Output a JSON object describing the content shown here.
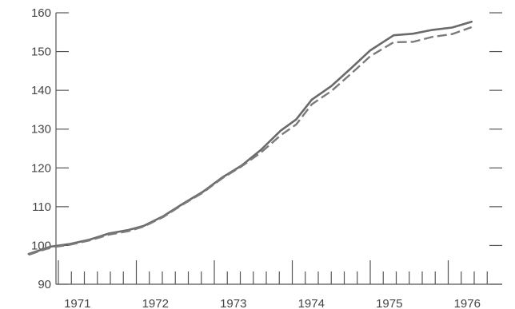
{
  "chart_data": {
    "type": "line",
    "title": "",
    "xlabel": "",
    "ylabel": "",
    "ylim": [
      90,
      160
    ],
    "yticks": [
      90,
      100,
      110,
      120,
      130,
      140,
      150,
      160
    ],
    "xlim": [
      1970.6,
      1976.6
    ],
    "x_tick_labels": [
      "1971",
      "1972",
      "1973",
      "1974",
      "1975",
      "1976"
    ],
    "grid": false,
    "legend": "none",
    "series": [
      {
        "style": "solid",
        "color": "#6a6a6a",
        "points": [
          [
            1970.62,
            97.8
          ],
          [
            1970.9,
            99.7
          ],
          [
            1971.15,
            100.4
          ],
          [
            1971.4,
            101.5
          ],
          [
            1971.65,
            103.1
          ],
          [
            1971.9,
            104.0
          ],
          [
            1972.1,
            105.1
          ],
          [
            1972.35,
            107.6
          ],
          [
            1972.6,
            110.8
          ],
          [
            1972.85,
            113.8
          ],
          [
            1973.1,
            117.5
          ],
          [
            1973.35,
            120.6
          ],
          [
            1973.6,
            124.7
          ],
          [
            1973.85,
            129.6
          ],
          [
            1974.05,
            132.5
          ],
          [
            1974.25,
            137.6
          ],
          [
            1974.5,
            141.1
          ],
          [
            1974.75,
            145.6
          ],
          [
            1975.0,
            150.3
          ],
          [
            1975.3,
            154.2
          ],
          [
            1975.55,
            154.6
          ],
          [
            1975.8,
            155.6
          ],
          [
            1976.05,
            156.2
          ],
          [
            1976.3,
            157.7
          ]
        ]
      },
      {
        "style": "dashed",
        "color": "#7a7a7a",
        "points": [
          [
            1970.62,
            97.6
          ],
          [
            1970.9,
            99.5
          ],
          [
            1971.15,
            100.2
          ],
          [
            1971.4,
            101.3
          ],
          [
            1971.65,
            102.8
          ],
          [
            1971.9,
            103.7
          ],
          [
            1972.1,
            104.9
          ],
          [
            1972.35,
            107.4
          ],
          [
            1972.6,
            110.6
          ],
          [
            1972.85,
            113.6
          ],
          [
            1973.1,
            117.3
          ],
          [
            1973.35,
            120.4
          ],
          [
            1973.6,
            124.0
          ],
          [
            1973.85,
            128.4
          ],
          [
            1974.05,
            131.2
          ],
          [
            1974.25,
            136.4
          ],
          [
            1974.5,
            139.8
          ],
          [
            1974.75,
            144.2
          ],
          [
            1975.0,
            148.8
          ],
          [
            1975.3,
            152.4
          ],
          [
            1975.55,
            152.5
          ],
          [
            1975.8,
            153.8
          ],
          [
            1976.05,
            154.5
          ],
          [
            1976.3,
            156.3
          ]
        ]
      }
    ]
  }
}
